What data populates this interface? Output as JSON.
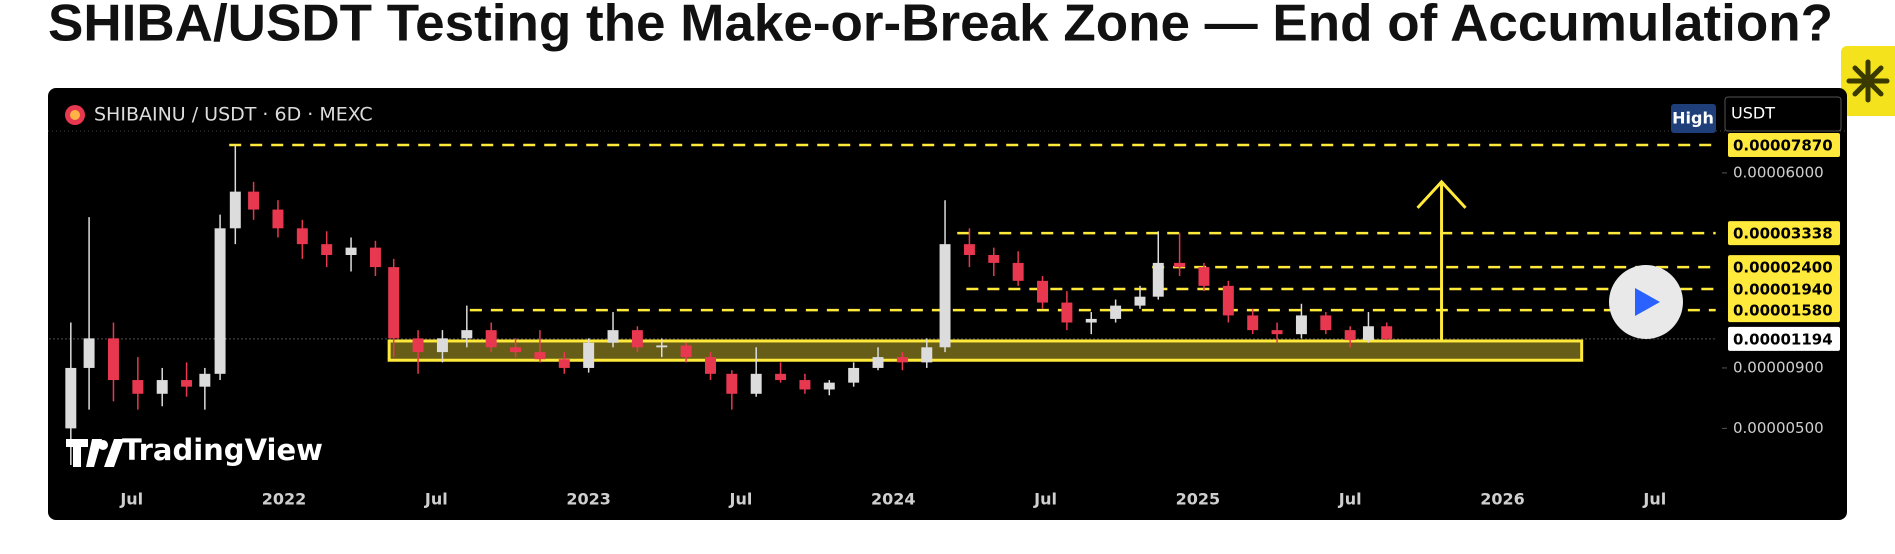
{
  "page": {
    "title": "SHIBA/USDT Testing the Make-or-Break Zone — End of Accumulation?"
  },
  "chart_data": {
    "type": "candlestick",
    "symbol": "SHIBAINU / USDT · 6D · MEXC",
    "badge": "High",
    "currency_input": "USDT",
    "logo": "TradingView",
    "log_scale": true,
    "up_color": "#dcdcdc",
    "down_color": "#e8384f",
    "level_color": "#ffe93b",
    "xlim": [
      2021.23,
      2026.7
    ],
    "ylim": [
      3e-06,
      9e-05
    ],
    "xticks": [
      {
        "value": 2021.5,
        "label": "Jul"
      },
      {
        "value": 2022,
        "label": "2022"
      },
      {
        "value": 2022.5,
        "label": "Jul"
      },
      {
        "value": 2023,
        "label": "2023"
      },
      {
        "value": 2023.5,
        "label": "Jul"
      },
      {
        "value": 2024,
        "label": "2024"
      },
      {
        "value": 2024.5,
        "label": "Jul"
      },
      {
        "value": 2025,
        "label": "2025"
      },
      {
        "value": 2025.5,
        "label": "Jul"
      },
      {
        "value": 2026,
        "label": "2026"
      },
      {
        "value": 2026.5,
        "label": "Jul"
      }
    ],
    "yticks": [
      {
        "value": 6e-05,
        "label": "0.00006000"
      },
      {
        "value": 9e-06,
        "label": "0.00000900"
      },
      {
        "value": 5e-06,
        "label": "0.00000500"
      }
    ],
    "levels": [
      {
        "value": 7.87e-05,
        "label": "0.00007870",
        "start": 2021.82
      },
      {
        "value": 3.338e-05,
        "label": "0.00003338",
        "start": 2024.21
      },
      {
        "value": 2.4e-05,
        "label": "0.00002400",
        "start": 2024.85
      },
      {
        "value": 1.94e-05,
        "label": "0.00001940",
        "start": 2024.24
      },
      {
        "value": 1.58e-05,
        "label": "0.00001580",
        "start": 2022.61
      }
    ],
    "last_price": {
      "value": 1.194e-05,
      "label": "0.00001194"
    },
    "zone": {
      "x": [
        2022.345,
        2026.26
      ],
      "y": [
        9.7e-06,
        1.17e-05
      ]
    },
    "arrow": {
      "x": 2025.8,
      "y": [
        1.17e-05,
        5.5e-05
      ]
    },
    "x": [
      2021.3,
      2021.36,
      2021.44,
      2021.52,
      2021.6,
      2021.68,
      2021.74,
      2021.79,
      2021.84,
      2021.9,
      2021.98,
      2022.06,
      2022.14,
      2022.22,
      2022.3,
      2022.36,
      2022.44,
      2022.52,
      2022.6,
      2022.68,
      2022.76,
      2022.84,
      2022.92,
      2023.0,
      2023.08,
      2023.16,
      2023.24,
      2023.32,
      2023.4,
      2023.47,
      2023.55,
      2023.63,
      2023.71,
      2023.79,
      2023.87,
      2023.95,
      2024.03,
      2024.11,
      2024.17,
      2024.25,
      2024.33,
      2024.41,
      2024.49,
      2024.57,
      2024.65,
      2024.73,
      2024.81,
      2024.87,
      2024.94,
      2025.02,
      2025.1,
      2025.18,
      2025.26,
      2025.34,
      2025.42,
      2025.5,
      2025.56,
      2025.62
    ],
    "open": [
      5e-06,
      9e-06,
      1.2e-05,
      8e-06,
      7e-06,
      8e-06,
      7.5e-06,
      8.5e-06,
      3.5e-05,
      5e-05,
      4.2e-05,
      3.5e-05,
      3e-05,
      2.7e-05,
      2.9e-05,
      2.4e-05,
      1.2e-05,
      1.05e-05,
      1.2e-05,
      1.3e-05,
      1.1e-05,
      1.05e-05,
      9.8e-06,
      9e-06,
      1.15e-05,
      1.3e-05,
      1.1e-05,
      1.12e-05,
      1e-05,
      8.5e-06,
      7e-06,
      8.5e-06,
      8e-06,
      7.3e-06,
      7.8e-06,
      9e-06,
      1e-05,
      9.5e-06,
      1.1e-05,
      3e-05,
      2.7e-05,
      2.5e-05,
      2.1e-05,
      1.7e-05,
      1.4e-05,
      1.45e-05,
      1.65e-05,
      1.8e-05,
      2.5e-05,
      2.4e-05,
      2e-05,
      1.5e-05,
      1.3e-05,
      1.25e-05,
      1.5e-05,
      1.3e-05,
      1.18e-05,
      1.35e-05
    ],
    "high": [
      1.4e-05,
      3.9e-05,
      1.4e-05,
      1e-05,
      9e-06,
      9.5e-06,
      9e-06,
      4e-05,
      7.87e-05,
      5.5e-05,
      4.6e-05,
      3.8e-05,
      3.4e-05,
      3.2e-05,
      3.1e-05,
      2.6e-05,
      1.3e-05,
      1.3e-05,
      1.65e-05,
      1.4e-05,
      1.2e-05,
      1.3e-05,
      1.05e-05,
      1.2e-05,
      1.55e-05,
      1.35e-05,
      1.2e-05,
      1.15e-05,
      1.05e-05,
      8.8e-06,
      1.1e-05,
      9.5e-06,
      8.5e-06,
      8e-06,
      9.5e-06,
      1.1e-05,
      1.05e-05,
      1.2e-05,
      4.6e-05,
      3.5e-05,
      2.9e-05,
      2.8e-05,
      2.2e-05,
      1.9e-05,
      1.55e-05,
      1.75e-05,
      2e-05,
      3.4e-05,
      3.34e-05,
      2.5e-05,
      2.1e-05,
      1.6e-05,
      1.4e-05,
      1.68e-05,
      1.55e-05,
      1.35e-05,
      1.55e-05,
      1.4e-05
    ],
    "low": [
      3.5e-06,
      6e-06,
      6.5e-06,
      6e-06,
      6.2e-06,
      6.8e-06,
      6e-06,
      8e-06,
      3e-05,
      3.8e-05,
      3.2e-05,
      2.6e-05,
      2.4e-05,
      2.3e-05,
      2.2e-05,
      1e-05,
      8.5e-06,
      9.5e-06,
      1.1e-05,
      1.05e-05,
      1e-05,
      9.5e-06,
      8.5e-06,
      8.6e-06,
      1.1e-05,
      1.05e-05,
      1e-05,
      9.5e-06,
      8e-06,
      6e-06,
      6.8e-06,
      7.8e-06,
      7e-06,
      6.9e-06,
      7.5e-06,
      8.8e-06,
      8.8e-06,
      9e-06,
      1.05e-05,
      2.4e-05,
      2.2e-05,
      2e-05,
      1.6e-05,
      1.3e-05,
      1.25e-05,
      1.4e-05,
      1.6e-05,
      1.75e-05,
      2.2e-05,
      1.9e-05,
      1.4e-05,
      1.25e-05,
      1.15e-05,
      1.2e-05,
      1.25e-05,
      1.1e-05,
      1.15e-05,
      1.18e-05
    ],
    "close": [
      9e-06,
      1.2e-05,
      8e-06,
      7e-06,
      8e-06,
      7.5e-06,
      8.5e-06,
      3.5e-05,
      5e-05,
      4.2e-05,
      3.5e-05,
      3e-05,
      2.7e-05,
      2.9e-05,
      2.4e-05,
      1.2e-05,
      1.05e-05,
      1.2e-05,
      1.3e-05,
      1.1e-05,
      1.05e-05,
      9.8e-06,
      9e-06,
      1.15e-05,
      1.3e-05,
      1.1e-05,
      1.12e-05,
      1e-05,
      8.5e-06,
      7e-06,
      8.5e-06,
      8e-06,
      7.3e-06,
      7.8e-06,
      9e-06,
      1e-05,
      9.5e-06,
      1.1e-05,
      3e-05,
      2.7e-05,
      2.5e-05,
      2.1e-05,
      1.7e-05,
      1.4e-05,
      1.45e-05,
      1.65e-05,
      1.8e-05,
      2.5e-05,
      2.4e-05,
      2e-05,
      1.5e-05,
      1.3e-05,
      1.25e-05,
      1.5e-05,
      1.3e-05,
      1.18e-05,
      1.35e-05,
      1.194e-05
    ]
  }
}
